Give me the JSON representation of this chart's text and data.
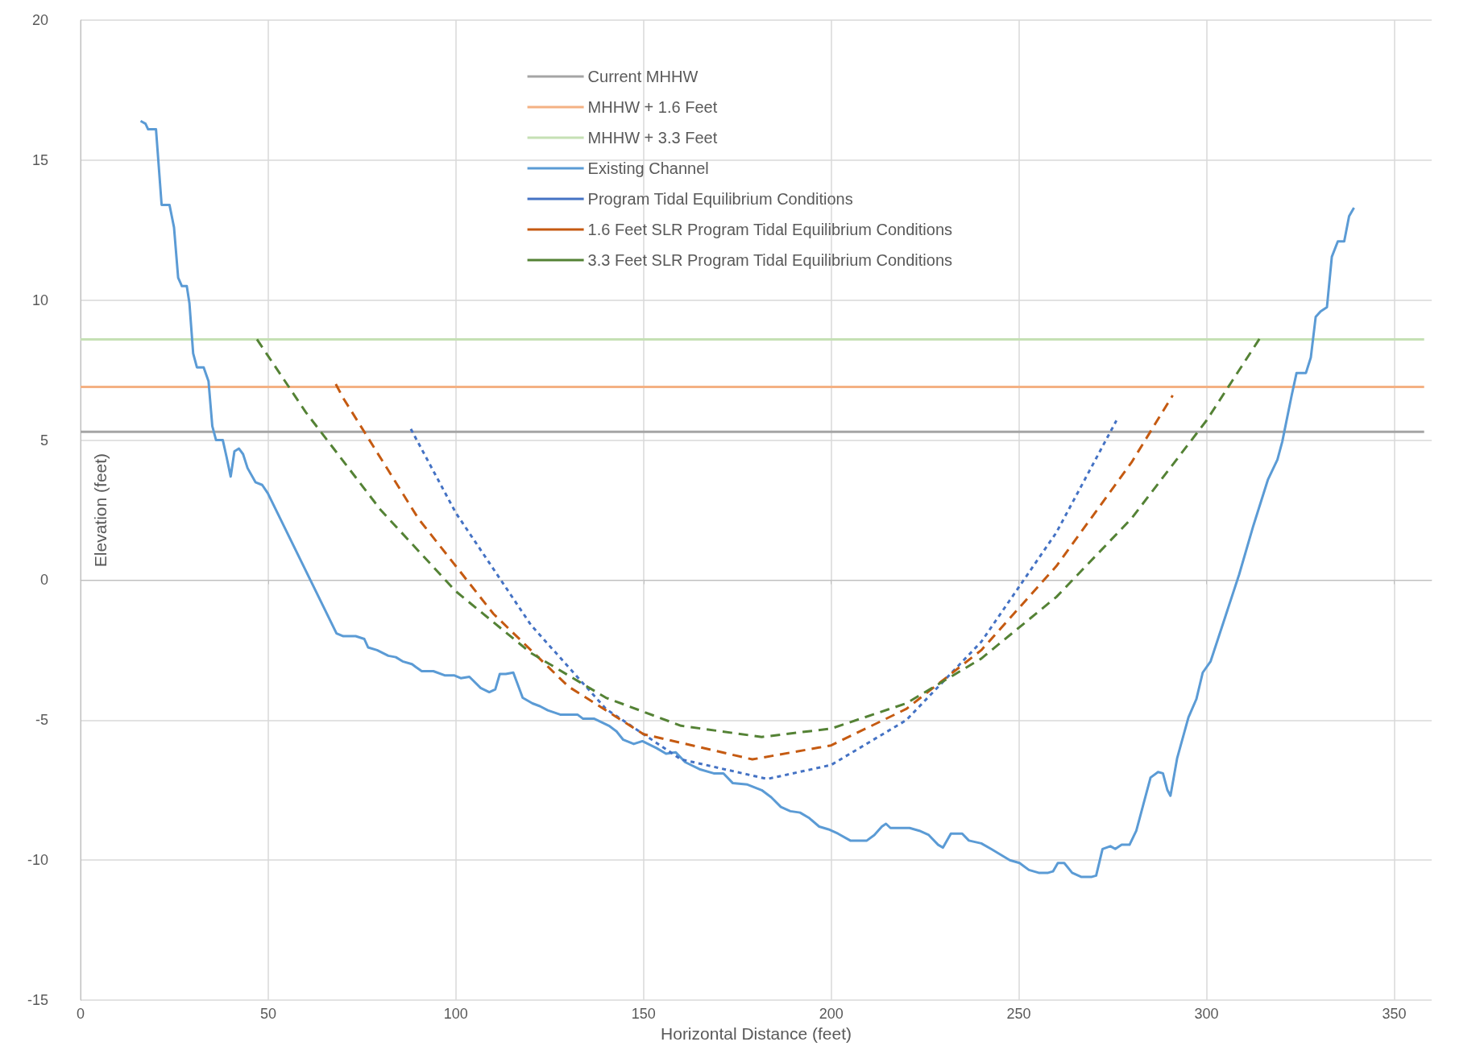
{
  "chart_data": {
    "type": "line",
    "xlabel": "Horizontal Distance (feet)",
    "ylabel": "Elevation (feet)",
    "xlim": [
      0,
      360
    ],
    "xticks": [
      0,
      50,
      100,
      150,
      200,
      250,
      300,
      350
    ],
    "ylim": [
      -15,
      20
    ],
    "yticks": [
      -15,
      -10,
      -5,
      0,
      5,
      10,
      15,
      20
    ],
    "grid": true,
    "legend": "top",
    "marker": "none",
    "series": [
      {
        "name": "Current MHHW",
        "color": "#a5a5a5",
        "line_style": "solid",
        "x": [
          0,
          358
        ],
        "values": [
          5.3,
          5.3
        ]
      },
      {
        "name": "MHHW + 1.6 Feet",
        "color": "#f4b183",
        "line_style": "solid",
        "x": [
          0,
          358
        ],
        "values": [
          6.9,
          6.9
        ]
      },
      {
        "name": "MHHW + 3.3 Feet",
        "color": "#c5e0b4",
        "line_style": "solid",
        "x": [
          0,
          358
        ],
        "values": [
          8.6,
          8.6
        ]
      },
      {
        "name": "Existing Channel",
        "color": "#5b9bd5",
        "line_style": "solid",
        "x": [
          16,
          17.3,
          18,
          20.1,
          21.6,
          23.7,
          24.9,
          26,
          27,
          28.3,
          29,
          30,
          31,
          32.8,
          34.1,
          35.1,
          36.1,
          37.9,
          38.9,
          40,
          41,
          42.2,
          43.3,
          44.5,
          46.6,
          48.4,
          49.9,
          68.2,
          70,
          73.3,
          75.6,
          76.6,
          79,
          82,
          84,
          85.8,
          88.3,
          89.3,
          90.9,
          94,
          97,
          99.5,
          101.3,
          103.6,
          106.6,
          108.9,
          110.5,
          111.7,
          113.3,
          115.3,
          117.8,
          120.4,
          122.4,
          124.5,
          127.8,
          130.6,
          132.4,
          133.9,
          136.9,
          140.8,
          142.8,
          144.6,
          147.4,
          149.7,
          153.5,
          156,
          158.6,
          161.1,
          164.9,
          168.7,
          171.3,
          173.8,
          177.7,
          181.5,
          184,
          186.6,
          189.1,
          191.7,
          194.2,
          196.8,
          199.3,
          201.8,
          205.1,
          209.5,
          211.5,
          213.5,
          214.6,
          215.8,
          220.9,
          223.5,
          226,
          228.5,
          229.8,
          231.9,
          234.9,
          236.7,
          240,
          242.6,
          245.1,
          247.6,
          250.2,
          252.7,
          255.3,
          257.8,
          259.1,
          260.4,
          262.1,
          264.2,
          266.7,
          269.3,
          270.6,
          272.3,
          274.4,
          275.7,
          277.4,
          279.5,
          281.3,
          283.3,
          285.1,
          287.1,
          288.4,
          289.6,
          290.4,
          292.2,
          295.2,
          297.3,
          299,
          301.1,
          304.9,
          308.7,
          312.5,
          316.4,
          318.9,
          320.2,
          322.7,
          324,
          326.5,
          327.8,
          329.1,
          330.4,
          332.1,
          333.4,
          335,
          336.7,
          338,
          339.3
        ],
        "values": [
          16.4,
          16.3,
          16.1,
          16.1,
          13.4,
          13.4,
          12.6,
          10.8,
          10.5,
          10.5,
          9.9,
          8.1,
          7.6,
          7.6,
          7.1,
          5.5,
          5,
          5,
          4.4,
          3.7,
          4.6,
          4.7,
          4.5,
          4,
          3.5,
          3.4,
          3.1,
          -1.9,
          -2,
          -2,
          -2.1,
          -2.4,
          -2.5,
          -2.7,
          -2.75,
          -2.9,
          -3,
          -3.1,
          -3.25,
          -3.25,
          -3.4,
          -3.4,
          -3.5,
          -3.45,
          -3.85,
          -4,
          -3.9,
          -3.35,
          -3.35,
          -3.3,
          -4.2,
          -4.4,
          -4.5,
          -4.65,
          -4.8,
          -4.8,
          -4.8,
          -4.95,
          -4.95,
          -5.2,
          -5.4,
          -5.7,
          -5.85,
          -5.75,
          -6,
          -6.2,
          -6.15,
          -6.5,
          -6.75,
          -6.9,
          -6.9,
          -7.25,
          -7.3,
          -7.5,
          -7.75,
          -8.1,
          -8.25,
          -8.3,
          -8.5,
          -8.8,
          -8.9,
          -9.05,
          -9.3,
          -9.3,
          -9.1,
          -8.8,
          -8.7,
          -8.85,
          -8.85,
          -8.95,
          -9.1,
          -9.45,
          -9.55,
          -9.05,
          -9.05,
          -9.3,
          -9.4,
          -9.6,
          -9.8,
          -10,
          -10.1,
          -10.35,
          -10.45,
          -10.45,
          -10.4,
          -10.1,
          -10.1,
          -10.45,
          -10.6,
          -10.6,
          -10.55,
          -9.6,
          -9.5,
          -9.6,
          -9.45,
          -9.45,
          -8.95,
          -7.95,
          -7.05,
          -6.85,
          -6.9,
          -7.5,
          -7.7,
          -6.35,
          -4.9,
          -4.25,
          -3.3,
          -2.9,
          -1.35,
          0.2,
          1.95,
          3.6,
          4.3,
          4.95,
          6.6,
          7.4,
          7.4,
          7.95,
          9.4,
          9.6,
          9.75,
          11.55,
          12.1,
          12.1,
          13,
          13.3
        ]
      },
      {
        "name": "Program Tidal Equilibrium Conditions",
        "color": "#4472c4",
        "line_style": "dotted",
        "x": [
          88,
          100,
          120,
          140,
          160,
          183,
          200,
          220,
          240,
          260,
          276
        ],
        "values": [
          5.4,
          2.4,
          -1.6,
          -4.6,
          -6.4,
          -7.1,
          -6.6,
          -5,
          -2.2,
          1.7,
          5.7
        ]
      },
      {
        "name": "1.6 Feet SLR Program Tidal Equilibrium Conditions",
        "color": "#c55a11",
        "line_style": "dashed",
        "x": [
          68,
          70,
          90,
          110,
          130,
          150,
          179,
          200,
          220,
          240,
          260,
          280,
          291
        ],
        "values": [
          7,
          6.5,
          2.2,
          -1.2,
          -3.8,
          -5.5,
          -6.4,
          -5.9,
          -4.6,
          -2.5,
          0.5,
          4.2,
          6.6
        ]
      },
      {
        "name": "3.3 Feet SLR Program Tidal Equilibrium Conditions",
        "color": "#548235",
        "line_style": "dashed",
        "x": [
          47,
          60,
          80,
          100,
          120,
          140,
          160,
          181.5,
          200,
          220,
          240,
          260,
          280,
          300,
          315
        ],
        "values": [
          8.6,
          6,
          2.5,
          -0.4,
          -2.6,
          -4.2,
          -5.2,
          -5.6,
          -5.3,
          -4.4,
          -2.8,
          -0.6,
          2.2,
          5.7,
          8.8
        ]
      }
    ]
  }
}
